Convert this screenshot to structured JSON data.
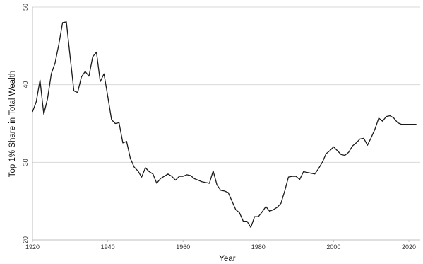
{
  "chart_data": {
    "type": "line",
    "title": "",
    "xlabel": "Year",
    "ylabel": "Top 1% Share in Total Wealth",
    "xlim": [
      1920,
      2023
    ],
    "ylim": [
      20,
      50
    ],
    "xticks": [
      1920,
      1940,
      1960,
      1980,
      2000,
      2020
    ],
    "yticks": [
      20,
      30,
      40,
      50
    ],
    "grid": "horizontal",
    "legend": "none",
    "line_color": "#1a1a1a",
    "series": [
      {
        "x": [
          1920,
          1921,
          1922,
          1923,
          1924,
          1925,
          1926,
          1927,
          1928,
          1929,
          1930,
          1931,
          1932,
          1933,
          1934,
          1935,
          1936,
          1937,
          1938,
          1939,
          1940,
          1941,
          1942,
          1943,
          1944,
          1945,
          1946,
          1947,
          1948,
          1949,
          1950,
          1951,
          1952,
          1953,
          1954,
          1955,
          1956,
          1957,
          1958,
          1959,
          1960,
          1961,
          1962,
          1963,
          1964,
          1965,
          1966,
          1967,
          1968,
          1969,
          1970,
          1971,
          1972,
          1973,
          1974,
          1975,
          1976,
          1977,
          1978,
          1979,
          1980,
          1981,
          1982,
          1983,
          1984,
          1985,
          1986,
          1987,
          1988,
          1989,
          1990,
          1991,
          1992,
          1993,
          1994,
          1995,
          1996,
          1997,
          1998,
          1999,
          2000,
          2001,
          2002,
          2003,
          2004,
          2005,
          2006,
          2007,
          2008,
          2009,
          2010,
          2011,
          2012,
          2013,
          2014,
          2015,
          2016,
          2017,
          2018,
          2019,
          2020,
          2021,
          2022
        ],
        "y": [
          36.5,
          37.8,
          40.6,
          36.2,
          38.2,
          41.4,
          42.8,
          45.2,
          48.0,
          48.1,
          43.6,
          39.2,
          39.0,
          41.0,
          41.7,
          41.1,
          43.6,
          44.2,
          40.4,
          41.4,
          38.5,
          35.5,
          35.0,
          35.1,
          32.5,
          32.7,
          30.5,
          29.4,
          28.9,
          28.1,
          29.3,
          28.8,
          28.5,
          27.3,
          27.9,
          28.2,
          28.5,
          28.2,
          27.7,
          28.2,
          28.2,
          28.4,
          28.3,
          27.9,
          27.7,
          27.5,
          27.4,
          27.3,
          28.9,
          27.1,
          26.4,
          26.3,
          26.1,
          25.0,
          23.9,
          23.5,
          22.4,
          22.4,
          21.6,
          23.0,
          23.0,
          23.6,
          24.3,
          23.7,
          23.9,
          24.2,
          24.7,
          26.3,
          28.1,
          28.2,
          28.2,
          27.8,
          28.8,
          28.7,
          28.6,
          28.5,
          29.2,
          30.0,
          31.1,
          31.5,
          32.0,
          31.5,
          31.0,
          30.9,
          31.3,
          32.1,
          32.5,
          33.0,
          33.1,
          32.2,
          33.2,
          34.3,
          35.7,
          35.3,
          35.9,
          36.0,
          35.7,
          35.1,
          34.9,
          34.9,
          34.9,
          34.9,
          34.9
        ]
      }
    ]
  }
}
